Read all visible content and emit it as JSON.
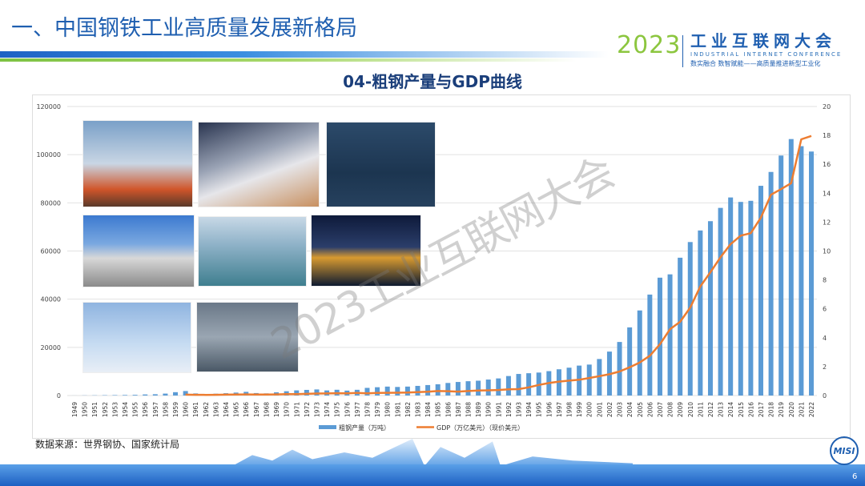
{
  "slide": {
    "title": "一、中国钢铁工业高质量发展新格局",
    "page_number": "6",
    "source": "数据来源：世界钢协、国家统计局",
    "watermark": "2023工业互联网大会"
  },
  "logo": {
    "year": "2023",
    "name": "工业互联网大会",
    "english": "INDUSTRIAL INTERNET CONFERENCE",
    "slogan": "数实融合  数智赋能——高质量推进新型工业化",
    "emblem": "MISI"
  },
  "colors": {
    "bar": "#5b9bd5",
    "line": "#ed7d31",
    "title": "#1f5fb0"
  },
  "chart_data": {
    "type": "bar+line",
    "title": "04-粗钢产量与GDP曲线",
    "grid": true,
    "legend_position": "bottom",
    "categories": [
      "1949",
      "1950",
      "1951",
      "1952",
      "1953",
      "1954",
      "1955",
      "1956",
      "1957",
      "1958",
      "1959",
      "1960",
      "1961",
      "1962",
      "1963",
      "1964",
      "1965",
      "1966",
      "1967",
      "1968",
      "1969",
      "1970",
      "1971",
      "1972",
      "1973",
      "1974",
      "1975",
      "1976",
      "1977",
      "1978",
      "1979",
      "1980",
      "1981",
      "1982",
      "1983",
      "1984",
      "1985",
      "1986",
      "1987",
      "1988",
      "1989",
      "1990",
      "1991",
      "1992",
      "1993",
      "1994",
      "1995",
      "1996",
      "1997",
      "1998",
      "1999",
      "2000",
      "2001",
      "2002",
      "2003",
      "2004",
      "2005",
      "2006",
      "2007",
      "2008",
      "2009",
      "2010",
      "2011",
      "2012",
      "2013",
      "2014",
      "2015",
      "2016",
      "2017",
      "2018",
      "2019",
      "2020",
      "2021",
      "2022"
    ],
    "y_left": {
      "range": [
        0,
        120000
      ],
      "ticks": [
        "0",
        "20000",
        "40000",
        "60000",
        "80000",
        "100000",
        "120000"
      ]
    },
    "y_right": {
      "range": [
        0,
        20
      ],
      "ticks": [
        "0",
        "2",
        "4",
        "6",
        "8",
        "10",
        "12",
        "14",
        "16",
        "18",
        "20"
      ]
    },
    "series": [
      {
        "name": "粗钢产量（万吨）",
        "type": "bar",
        "axis": "left",
        "values": [
          16,
          61,
          90,
          135,
          177,
          223,
          285,
          447,
          535,
          800,
          1387,
          1866,
          870,
          667,
          762,
          964,
          1223,
          1532,
          1029,
          904,
          1333,
          1779,
          2132,
          2338,
          2522,
          2112,
          2390,
          2046,
          2374,
          3178,
          3448,
          3712,
          3560,
          3716,
          4002,
          4347,
          4679,
          5221,
          5628,
          5943,
          6159,
          6635,
          7100,
          8094,
          8956,
          9261,
          9536,
          10124,
          10894,
          11559,
          12426,
          12850,
          15163,
          18237,
          22234,
          28291,
          35324,
          41915,
          48929,
          50306,
          57218,
          63723,
          68528,
          72388,
          77904,
          82231,
          80383,
          80837,
          87074,
          92826,
          99634,
          106477,
          103524,
          101300
        ]
      },
      {
        "name": "GDP（万亿美元）（现价美元）",
        "type": "line",
        "axis": "right",
        "values": [
          null,
          null,
          null,
          null,
          null,
          null,
          null,
          null,
          null,
          null,
          null,
          0.06,
          0.05,
          0.047,
          0.051,
          0.06,
          0.07,
          0.076,
          0.072,
          0.07,
          0.079,
          0.093,
          0.1,
          0.114,
          0.139,
          0.144,
          0.163,
          0.154,
          0.175,
          0.15,
          0.178,
          0.191,
          0.196,
          0.205,
          0.231,
          0.26,
          0.309,
          0.301,
          0.273,
          0.312,
          0.348,
          0.361,
          0.383,
          0.427,
          0.445,
          0.564,
          0.734,
          0.864,
          0.962,
          1.029,
          1.094,
          1.211,
          1.339,
          1.471,
          1.66,
          1.955,
          2.286,
          2.752,
          3.55,
          4.594,
          5.102,
          6.087,
          7.552,
          8.532,
          9.57,
          10.476,
          11.062,
          11.233,
          12.31,
          13.895,
          14.28,
          14.69,
          17.73,
          17.96
        ]
      }
    ]
  }
}
